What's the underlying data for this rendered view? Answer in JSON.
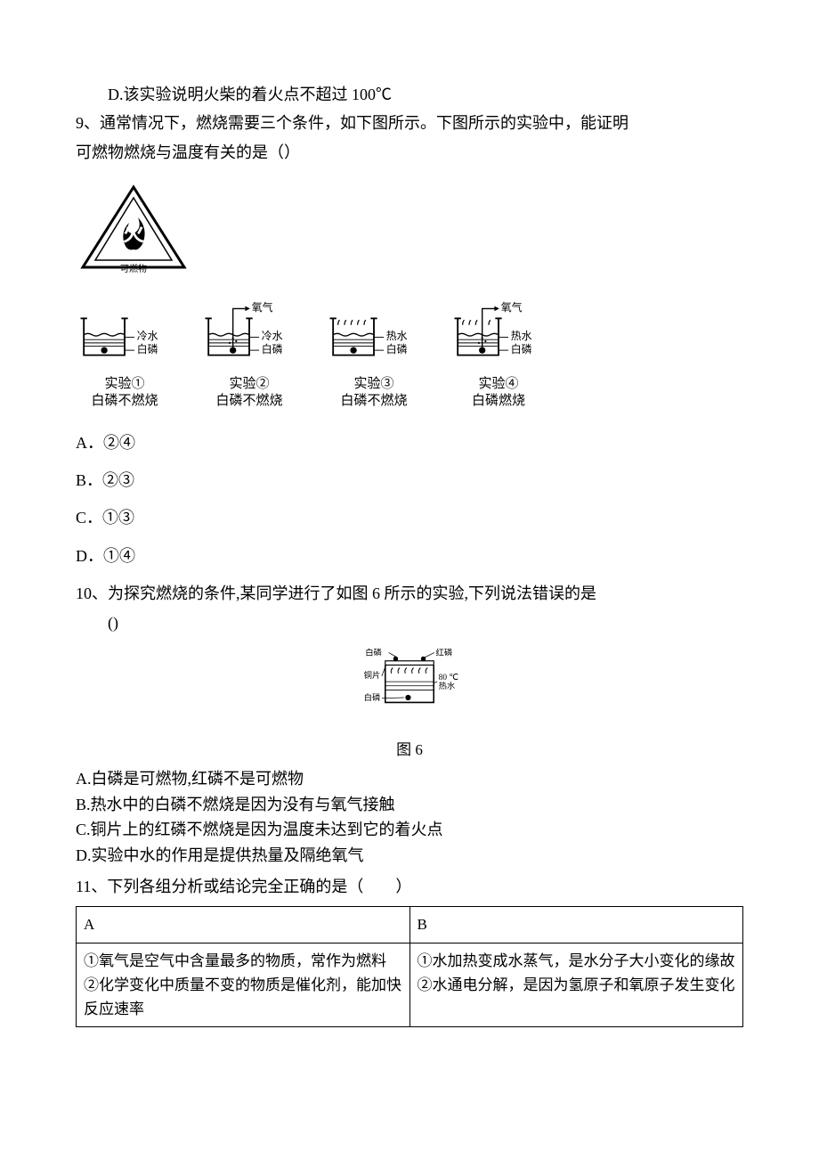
{
  "line_d": "D.该实验说明火柴的着火点不超过 100℃",
  "q9": {
    "stem1": "9、通常情况下，燃烧需要三个条件，如下图所示。下图所示的实验中，能证明",
    "stem2": "可燃物燃烧与温度有关的是（）",
    "triangle": {
      "label_inner": "火",
      "label_bottom": "可燃物"
    },
    "exp_arrow_label": "氧气",
    "experiments": [
      {
        "water": "冷水",
        "sub": "白磷",
        "name": "实验①",
        "result": "白磷不燃烧",
        "has_o2": false,
        "has_heat": false
      },
      {
        "water": "冷水",
        "sub": "白磷",
        "name": "实验②",
        "result": "白磷不燃烧",
        "has_o2": true,
        "has_heat": false
      },
      {
        "water": "热水",
        "sub": "白磷",
        "name": "实验③",
        "result": "白磷不燃烧",
        "has_o2": false,
        "has_heat": true
      },
      {
        "water": "热水",
        "sub": "白磷",
        "name": "实验④",
        "result": "白磷燃烧",
        "has_o2": true,
        "has_heat": true
      }
    ],
    "options": {
      "a": "A．②④",
      "b": "B．②③",
      "c": "C．①③",
      "d": "D．①④"
    }
  },
  "q10": {
    "stem": "10、为探究燃烧的条件,某同学进行了如图 6 所示的实验,下列说法错误的是",
    "stem2": "()",
    "fig_labels": {
      "baip_top": "白磷",
      "hongp": "红磷",
      "tongpian": "铜片",
      "baip_in": "白磷",
      "temp": "80 ℃",
      "reshui": "热水"
    },
    "fig_caption": "图 6",
    "options": {
      "a": "A.白磷是可燃物,红磷不是可燃物",
      "b": "B.热水中的白磷不燃烧是因为没有与氧气接触",
      "c": "C.铜片上的红磷不燃烧是因为温度未达到它的着火点",
      "d": "D.实验中水的作用是提供热量及隔绝氧气"
    }
  },
  "q11": {
    "stem": "11、下列各组分析或结论完全正确的是（　　）",
    "table": {
      "headA": "A",
      "headB": "B",
      "cellA": "①氧气是空气中含量最多的物质，常作为燃料\n②化学变化中质量不变的物质是催化剂，能加快反应速率",
      "cellB": "①水加热变成水蒸气，是水分子大小变化的缘故\n②水通电分解，是因为氢原子和氧原子发生变化"
    }
  },
  "colors": {
    "black": "#000000",
    "white": "#ffffff"
  }
}
